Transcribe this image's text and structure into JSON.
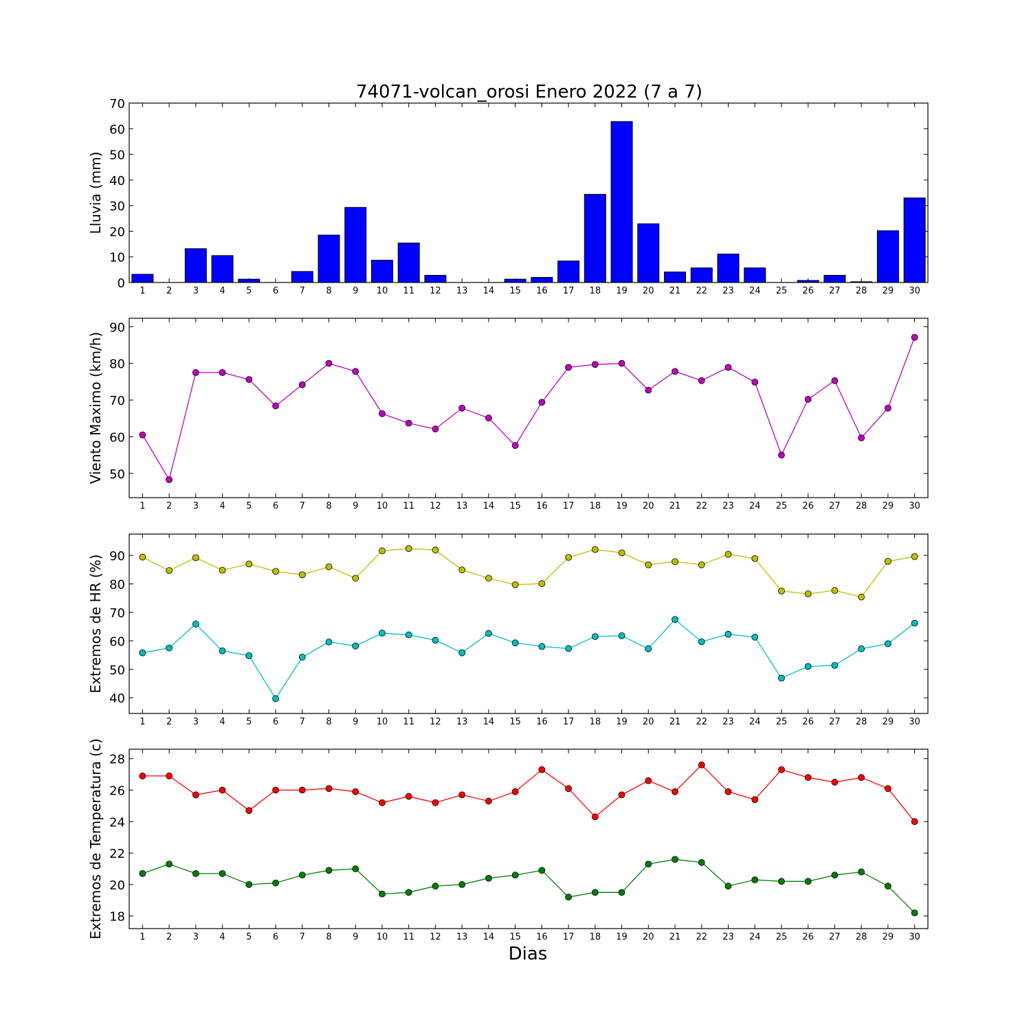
{
  "chart_data": {
    "title": "74071-volcan_orosi Enero 2022  (7 a 7)",
    "xlabel": "Dias",
    "x": [
      1,
      2,
      3,
      4,
      5,
      6,
      7,
      8,
      9,
      10,
      11,
      12,
      13,
      14,
      15,
      16,
      17,
      18,
      19,
      20,
      21,
      22,
      23,
      24,
      25,
      26,
      27,
      28,
      29,
      30
    ],
    "panels": [
      {
        "type": "bar",
        "ylabel": "Lluvia (mm)",
        "ylim": [
          0,
          70
        ],
        "yticks": [
          0,
          10,
          20,
          30,
          40,
          50,
          60,
          70
        ],
        "series": [
          {
            "color": "#0000ff",
            "values": [
              3.2,
              0,
              13.2,
              10.5,
              1.3,
              0,
              4.3,
              18.5,
              29.3,
              8.7,
              15.4,
              2.8,
              0,
              0,
              1.3,
              2.0,
              8.4,
              34.4,
              62.8,
              22.9,
              4.1,
              5.7,
              11.1,
              5.7,
              0,
              0.8,
              2.8,
              0.3,
              20.2,
              33.0
            ]
          }
        ]
      },
      {
        "type": "line",
        "ylabel": "Viento Maximo (km/h)",
        "ylim": [
          43.4,
          92.3
        ],
        "yticks": [
          50,
          60,
          70,
          80,
          90
        ],
        "series": [
          {
            "color": "#bf00bf",
            "values": [
              60.5,
              48.3,
              77.5,
              77.5,
              75.6,
              68.4,
              74.2,
              80.0,
              77.8,
              66.3,
              63.7,
              62.1,
              67.8,
              65.1,
              57.6,
              69.4,
              78.9,
              79.7,
              80.0,
              72.7,
              77.8,
              75.3,
              78.9,
              74.9,
              55.0,
              70.2,
              75.3,
              59.7,
              67.8,
              87.1
            ]
          }
        ]
      },
      {
        "type": "line",
        "ylabel": "Extremos de HR (%)",
        "ylim": [
          34.5,
          97.5
        ],
        "yticks": [
          40,
          50,
          60,
          70,
          80,
          90
        ],
        "series": [
          {
            "color": "#bfbf00",
            "values": [
              89.4,
              84.7,
              89.2,
              84.8,
              87.0,
              84.4,
              83.2,
              86.0,
              82.0,
              91.6,
              92.4,
              91.9,
              84.9,
              82.0,
              79.7,
              80.1,
              89.3,
              92.1,
              90.9,
              86.7,
              87.8,
              86.7,
              90.4,
              88.9,
              77.5,
              76.5,
              77.7,
              75.4,
              87.9,
              89.6
            ]
          },
          {
            "color": "#00bfbf",
            "values": [
              55.8,
              57.5,
              65.9,
              56.5,
              54.8,
              39.7,
              54.3,
              59.6,
              58.2,
              62.7,
              62.1,
              60.2,
              55.8,
              62.6,
              59.3,
              58.0,
              57.3,
              61.5,
              61.8,
              57.2,
              67.5,
              59.7,
              62.3,
              61.3,
              46.9,
              51.0,
              51.4,
              57.2,
              59.0,
              66.2
            ]
          }
        ]
      },
      {
        "type": "line",
        "ylabel": "Extremos de Temperatura (c)",
        "ylim": [
          17.2,
          28.6
        ],
        "yticks": [
          18,
          20,
          22,
          24,
          26,
          28
        ],
        "series": [
          {
            "color": "#ff0000",
            "values": [
              26.9,
              26.9,
              25.7,
              26.0,
              24.7,
              26.0,
              26.0,
              26.1,
              25.9,
              25.2,
              25.6,
              25.2,
              25.7,
              25.3,
              25.9,
              27.3,
              26.1,
              24.3,
              25.7,
              26.6,
              25.9,
              27.6,
              25.9,
              25.4,
              27.3,
              26.8,
              26.5,
              26.8,
              26.1,
              24.0
            ]
          },
          {
            "color": "#008000",
            "values": [
              20.7,
              21.3,
              20.7,
              20.7,
              20.0,
              20.1,
              20.6,
              20.9,
              21.0,
              19.4,
              19.5,
              19.9,
              20.0,
              20.4,
              20.6,
              20.9,
              19.2,
              19.5,
              19.5,
              21.3,
              21.6,
              21.4,
              19.9,
              20.3,
              20.2,
              20.2,
              20.6,
              20.8,
              19.9,
              18.2
            ]
          }
        ]
      }
    ]
  }
}
